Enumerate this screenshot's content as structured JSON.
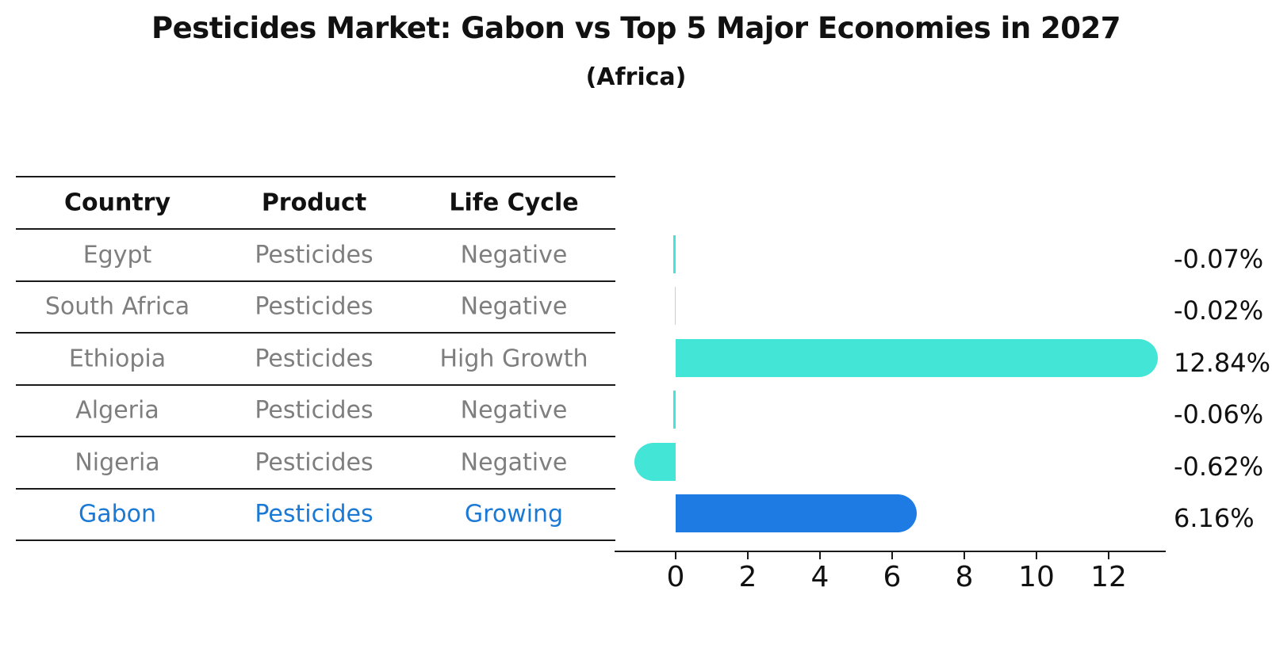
{
  "title": "Pesticides Market: Gabon vs Top 5 Major Economies in 2027",
  "subtitle": "(Africa)",
  "table": {
    "headers": [
      "Country",
      "Product",
      "Life Cycle"
    ],
    "rows": [
      {
        "country": "Egypt",
        "product": "Pesticides",
        "life_cycle": "Negative",
        "highlight": false
      },
      {
        "country": "South Africa",
        "product": "Pesticides",
        "life_cycle": "Negative",
        "highlight": false
      },
      {
        "country": "Ethiopia",
        "product": "Pesticides",
        "life_cycle": "High Growth",
        "highlight": false
      },
      {
        "country": "Algeria",
        "product": "Pesticides",
        "life_cycle": "Negative",
        "highlight": false
      },
      {
        "country": "Nigeria",
        "product": "Pesticides",
        "life_cycle": "Negative",
        "highlight": false
      },
      {
        "country": "Gabon",
        "product": "Pesticides",
        "life_cycle": "Growing",
        "highlight": true
      }
    ]
  },
  "chart_data": {
    "type": "bar",
    "orientation": "horizontal",
    "title": "Pesticides Market: Gabon vs Top 5 Major Economies in 2027",
    "subtitle": "(Africa)",
    "categories": [
      "Egypt",
      "South Africa",
      "Ethiopia",
      "Algeria",
      "Nigeria",
      "Gabon"
    ],
    "values": [
      -0.07,
      -0.02,
      12.84,
      -0.06,
      -0.62,
      6.16
    ],
    "value_labels": [
      "-0.07%",
      "-0.02%",
      "12.84%",
      "-0.06%",
      "-0.62%",
      "6.16%"
    ],
    "x_ticks": [
      0,
      2,
      4,
      6,
      8,
      10,
      12
    ],
    "xlim": [
      -1.7,
      13.6
    ],
    "grid": false,
    "legend": "none",
    "highlight_index": 5
  },
  "colors": {
    "bar": "#43e5d6",
    "highlight_bar": "#1e7be4",
    "highlight_text": "#1b79d6",
    "body_text": "#7e7e7e",
    "heading_text": "#111111",
    "axis": "#1a1a1a"
  }
}
